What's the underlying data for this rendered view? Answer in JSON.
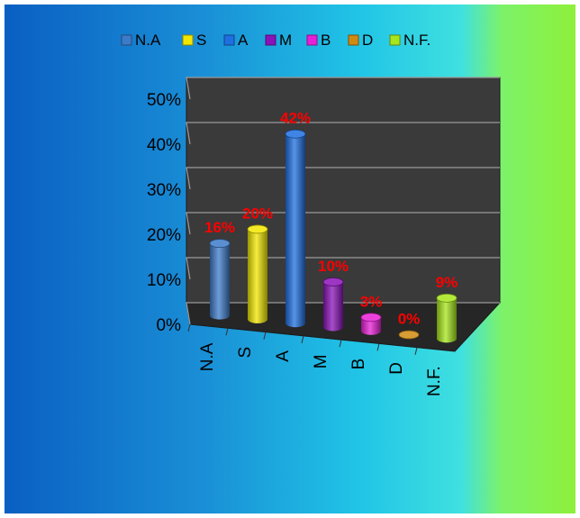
{
  "chart_data": {
    "type": "bar",
    "style": "3d-cylinder",
    "title": "",
    "xlabel": "",
    "ylabel": "",
    "categories": [
      "N.A",
      "S",
      "A",
      "M",
      "B",
      "D",
      "N.F."
    ],
    "values": [
      16,
      20,
      42,
      10,
      3,
      0,
      9
    ],
    "data_labels": [
      "16%",
      "20%",
      "42%",
      "10%",
      "3%",
      "0%",
      "9%"
    ],
    "colors": [
      "#3d7bc9",
      "#f2e600",
      "#1e6fe0",
      "#8a12b8",
      "#e81fd6",
      "#d08a10",
      "#a6e61a"
    ],
    "label_color": "#ff0000",
    "yticks": [
      "0%",
      "10%",
      "20%",
      "30%",
      "40%",
      "50%"
    ],
    "ylim": [
      0,
      50
    ],
    "grid": true,
    "legend": {
      "position": "top",
      "entries": [
        "N.A",
        "S",
        "A",
        "M",
        "B",
        "D",
        "N.F."
      ]
    }
  }
}
